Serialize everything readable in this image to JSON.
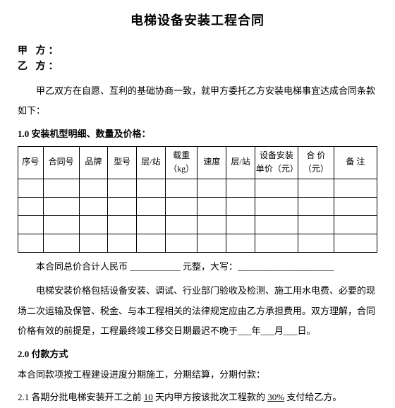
{
  "title": "电梯设备安装工程合同",
  "partyA": "甲 方：",
  "partyB": "乙 方：",
  "intro": "甲乙双方在自愿、互利的基础协商一致，就甲方委托乙方安装电梯事宜达成合同条款如下：",
  "section1": {
    "heading": "1.0 安装机型明细、数量及价格：",
    "headers": {
      "seq": "序号",
      "contractNo": "合同号",
      "brand": "品牌",
      "model": "型号",
      "floor": "层/站",
      "load": "载重（kg）",
      "speed": "速度",
      "floor2": "层/站",
      "unitPrice": "设备安装单价（元）",
      "totalPrice": "合 价（元）",
      "remark": "备 注"
    }
  },
  "totalLine": {
    "prefix": "本合同总价合计人民币 ",
    "mid": " 元整，大写：",
    "blank1": "___________",
    "blank2": "_____________________"
  },
  "desc": "电梯安装价格包括设备安装、调试、行业部门验收及检测、施工用水电费、必要的现场二次运输及保管、税金、与本工程相关的法律规定应由乙方承担费用。双方理解，合同价格有效的前提是，工程最终竣工移交日期最迟不晚于___年___月___日。",
  "section2": {
    "heading": "2.0 付款方式",
    "intro": "本合同款项按工程建设进度分期施工，分期结算，分期付款：",
    "item21_pre": "2.1 各期分批电梯安装开工之前 ",
    "item21_days": "10",
    "item21_mid": " 天内甲方按该批次工程款的 ",
    "item21_pct": "30%",
    "item21_suf": " 支付给乙方。"
  }
}
